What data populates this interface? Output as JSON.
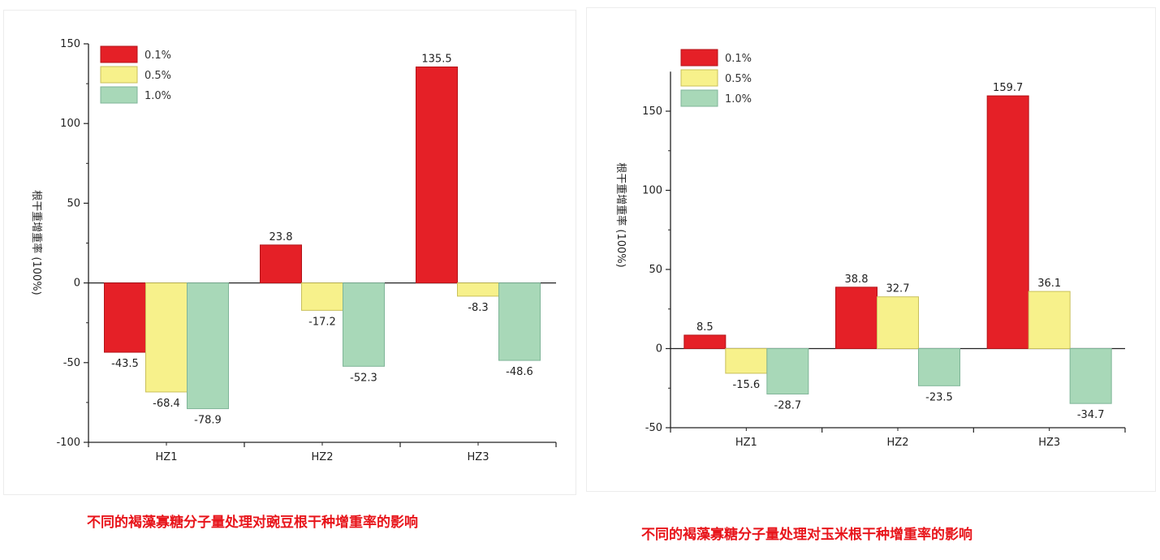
{
  "colors": {
    "s0.1": "#e52027",
    "s0.5": "#f7f18b",
    "s1.0": "#a8d8b8"
  },
  "chart_data": [
    {
      "type": "bar",
      "categories": [
        "HZ1",
        "HZ2",
        "HZ3"
      ],
      "series": [
        {
          "name": "0.1%",
          "values": [
            -43.5,
            23.8,
            135.5
          ]
        },
        {
          "name": "0.5%",
          "values": [
            -68.4,
            -17.2,
            -8.3
          ]
        },
        {
          "name": "1.0%",
          "values": [
            -78.9,
            -52.3,
            -48.6
          ]
        }
      ],
      "ylabel": "根干重增重率 (100%)",
      "ylim": [
        -100,
        150
      ],
      "yticks": [
        -100,
        -50,
        0,
        50,
        100,
        150
      ],
      "caption": "不同的褐藻寡糖分子量处理对豌豆根干种增重率的影响",
      "legend": "top-left",
      "grid": false
    },
    {
      "type": "bar",
      "categories": [
        "HZ1",
        "HZ2",
        "HZ3"
      ],
      "series": [
        {
          "name": "0.1%",
          "values": [
            8.5,
            38.8,
            159.7
          ]
        },
        {
          "name": "0.5%",
          "values": [
            -15.6,
            32.7,
            36.1
          ]
        },
        {
          "name": "1.0%",
          "values": [
            -28.7,
            -23.5,
            -34.7
          ]
        }
      ],
      "ylabel": "根干重增重率 (100%)",
      "ylim": [
        -50,
        175
      ],
      "yticks": [
        -50,
        0,
        50,
        100,
        150
      ],
      "caption": "不同的褐藻寡糖分子量处理对玉米根干种增重率的影响",
      "legend": "top-left",
      "grid": false
    }
  ]
}
